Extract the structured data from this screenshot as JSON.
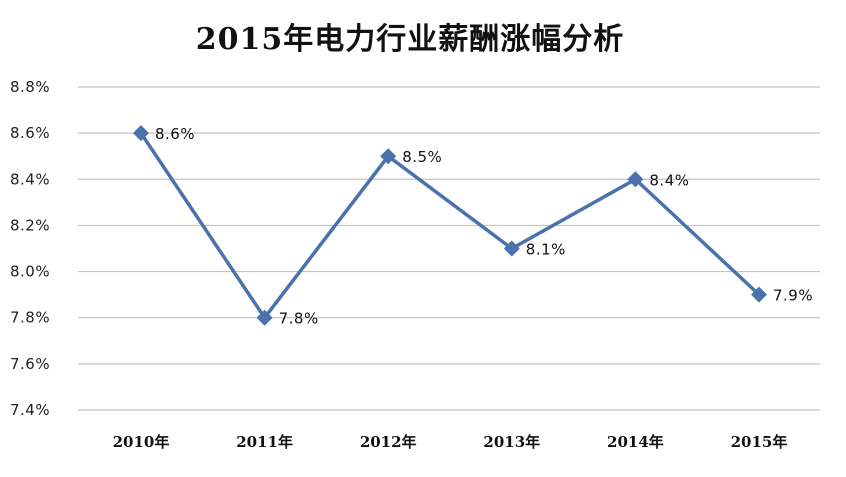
{
  "chart_data": {
    "type": "line",
    "title": "2015年电力行业薪酬涨幅分析",
    "xlabel": "",
    "ylabel": "",
    "categories": [
      "2010年",
      "2011年",
      "2012年",
      "2013年",
      "2014年",
      "2015年"
    ],
    "series": [
      {
        "values": [
          8.6,
          7.8,
          8.5,
          8.1,
          8.4,
          7.9
        ]
      }
    ],
    "data_labels": [
      "8.6%",
      "7.8%",
      "8.5%",
      "8.1%",
      "8.4%",
      "7.9%"
    ],
    "y_ticks": [
      "7.4%",
      "7.6%",
      "7.8%",
      "8.0%",
      "8.2%",
      "8.4%",
      "8.6%",
      "8.8%"
    ],
    "ylim": [
      7.4,
      8.8
    ],
    "grid": true,
    "legend": "none",
    "line_color": "#4a73ae",
    "marker": "diamond"
  }
}
